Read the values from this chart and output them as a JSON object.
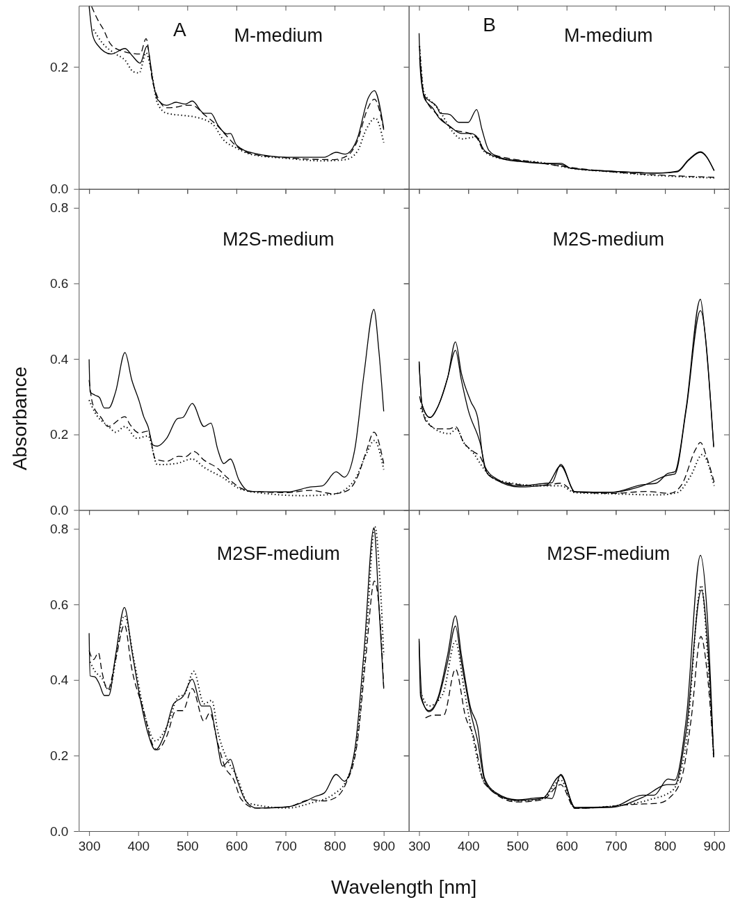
{
  "chart_data": [
    {
      "type": "line",
      "title": "M-medium",
      "annotations": [
        "A"
      ],
      "xlim": [
        279,
        951
      ],
      "ylim": [
        0,
        0.3
      ],
      "xticks": [
        300,
        400,
        500,
        600,
        700,
        800,
        900
      ],
      "yticks": [
        {
          "value": 0,
          "label": "0.0"
        },
        {
          "value": 0.2,
          "label": "0.2"
        }
      ],
      "tick_labels": "y",
      "series": [
        {
          "color": "#000000",
          "line_style": "solid",
          "x": [
            300,
            307,
            317,
            345,
            373,
            387,
            404,
            418,
            430,
            439,
            458,
            477,
            496,
            510,
            534,
            548,
            562,
            581,
            588,
            600,
            633,
            704,
            779,
            803,
            822,
            846,
            869,
            881,
            900
          ],
          "values": [
            0.299,
            0.253,
            0.236,
            0.221,
            0.23,
            0.219,
            0.206,
            0.234,
            0.177,
            0.147,
            0.137,
            0.142,
            0.139,
            0.144,
            0.124,
            0.124,
            0.105,
            0.09,
            0.091,
            0.072,
            0.059,
            0.052,
            0.052,
            0.06,
            0.057,
            0.082,
            0.15,
            0.161,
            0.099
          ]
        },
        {
          "color": "#000000",
          "line_style": "dashed",
          "x": [
            305,
            321,
            328,
            343,
            357,
            404,
            416,
            430,
            458,
            477,
            496,
            510,
            534,
            562,
            581,
            600,
            633,
            704,
            798,
            827,
            846,
            867,
            881,
            900
          ],
          "values": [
            0.299,
            0.272,
            0.263,
            0.238,
            0.229,
            0.221,
            0.246,
            0.173,
            0.133,
            0.134,
            0.137,
            0.137,
            0.122,
            0.103,
            0.086,
            0.07,
            0.057,
            0.051,
            0.048,
            0.055,
            0.078,
            0.131,
            0.147,
            0.097
          ]
        },
        {
          "color": "#000000",
          "line_style": "dotted",
          "x": [
            309,
            326,
            354,
            373,
            390,
            402,
            416,
            425,
            439,
            458,
            496,
            515,
            553,
            572,
            600,
            633,
            704,
            775,
            822,
            846,
            864,
            883,
            900
          ],
          "values": [
            0.261,
            0.24,
            0.221,
            0.211,
            0.192,
            0.19,
            0.223,
            0.2,
            0.141,
            0.124,
            0.12,
            0.118,
            0.105,
            0.082,
            0.067,
            0.056,
            0.05,
            0.046,
            0.048,
            0.061,
            0.097,
            0.116,
            0.076
          ]
        }
      ]
    },
    {
      "type": "line",
      "title": "M-medium",
      "annotations": [
        "B"
      ],
      "xlim": [
        279,
        930
      ],
      "ylim": [
        0,
        0.3
      ],
      "xticks": [
        300,
        400,
        500,
        600,
        700,
        800,
        900
      ],
      "yticks": [
        {
          "value": 0,
          "label": null
        },
        {
          "value": 0.2,
          "label": null
        }
      ],
      "tick_labels": false,
      "series": [
        {
          "color": "#000000",
          "line_style": "solid",
          "x": [
            300,
            303,
            310,
            320,
            336,
            343,
            362,
            381,
            400,
            417,
            428,
            442,
            466,
            504,
            551,
            589,
            608,
            692,
            787,
            825,
            848,
            872,
            900
          ],
          "values": [
            0.255,
            0.189,
            0.154,
            0.145,
            0.135,
            0.124,
            0.122,
            0.109,
            0.109,
            0.13,
            0.097,
            0.063,
            0.051,
            0.046,
            0.042,
            0.04,
            0.034,
            0.029,
            0.026,
            0.029,
            0.048,
            0.061,
            0.03
          ]
        },
        {
          "color": "#000000",
          "line_style": "solid",
          "x": [
            301,
            310,
            329,
            339,
            362,
            386,
            405,
            417,
            433,
            466,
            504,
            551,
            589,
            608,
            692,
            787,
            825,
            848,
            872,
            900
          ],
          "values": [
            0.215,
            0.15,
            0.131,
            0.118,
            0.103,
            0.091,
            0.091,
            0.086,
            0.063,
            0.05,
            0.045,
            0.042,
            0.042,
            0.034,
            0.029,
            0.026,
            0.028,
            0.047,
            0.06,
            0.03
          ]
        },
        {
          "color": "#000000",
          "line_style": "dashed",
          "x": [
            301,
            310,
            339,
            372,
            405,
            417,
            433,
            551,
            692,
            763,
            900
          ],
          "values": [
            0.234,
            0.154,
            0.12,
            0.097,
            0.09,
            0.084,
            0.061,
            0.042,
            0.028,
            0.024,
            0.019
          ]
        },
        {
          "color": "#000000",
          "line_style": "dotted",
          "x": [
            301,
            310,
            325,
            339,
            369,
            386,
            405,
            417,
            433,
            466,
            551,
            608,
            692,
            763,
            834,
            900
          ],
          "values": [
            0.234,
            0.158,
            0.143,
            0.131,
            0.093,
            0.082,
            0.084,
            0.086,
            0.061,
            0.05,
            0.043,
            0.034,
            0.028,
            0.023,
            0.02,
            0.018
          ]
        }
      ]
    },
    {
      "type": "line",
      "title": "M2S-medium",
      "ylabel": "Absorbance",
      "xlim": [
        279,
        951
      ],
      "ylim": [
        0,
        0.85
      ],
      "xticks": [
        300,
        400,
        500,
        600,
        700,
        800,
        900
      ],
      "yticks": [
        {
          "value": 0,
          "label": "0.0"
        },
        {
          "value": 0.2,
          "label": "0.2"
        },
        {
          "value": 0.4,
          "label": "0.4"
        },
        {
          "value": 0.6,
          "label": "0.6"
        },
        {
          "value": 0.8,
          "label": "0.8"
        }
      ],
      "tick_labels": "y",
      "series": [
        {
          "color": "#000000",
          "line_style": "solid",
          "x": [
            300,
            302,
            312,
            321,
            331,
            340,
            354,
            373,
            387,
            402,
            411,
            420,
            430,
            439,
            458,
            480,
            491,
            510,
            534,
            548,
            562,
            574,
            588,
            605,
            628,
            704,
            751,
            775,
            803,
            820,
            841,
            860,
            880,
            890,
            900
          ],
          "values": [
            0.399,
            0.313,
            0.304,
            0.298,
            0.27,
            0.27,
            0.313,
            0.417,
            0.344,
            0.288,
            0.248,
            0.221,
            0.172,
            0.169,
            0.19,
            0.242,
            0.245,
            0.282,
            0.221,
            0.23,
            0.16,
            0.123,
            0.135,
            0.08,
            0.049,
            0.048,
            0.061,
            0.064,
            0.101,
            0.087,
            0.16,
            0.362,
            0.531,
            0.423,
            0.261
          ]
        },
        {
          "color": "#000000",
          "line_style": "dashed",
          "x": [
            300,
            307,
            326,
            338,
            373,
            383,
            402,
            420,
            435,
            458,
            482,
            496,
            513,
            534,
            562,
            581,
            609,
            633,
            704,
            751,
            798,
            827,
            846,
            864,
            880,
            900
          ],
          "values": [
            0.344,
            0.282,
            0.242,
            0.221,
            0.247,
            0.227,
            0.204,
            0.209,
            0.135,
            0.129,
            0.142,
            0.141,
            0.155,
            0.132,
            0.11,
            0.086,
            0.058,
            0.049,
            0.046,
            0.052,
            0.043,
            0.052,
            0.086,
            0.153,
            0.206,
            0.123
          ]
        },
        {
          "color": "#000000",
          "line_style": "dotted",
          "x": [
            300,
            312,
            340,
            354,
            373,
            397,
            420,
            439,
            477,
            510,
            534,
            572,
            609,
            657,
            737,
            798,
            841,
            864,
            881,
            900
          ],
          "values": [
            0.291,
            0.258,
            0.221,
            0.206,
            0.221,
            0.19,
            0.196,
            0.12,
            0.123,
            0.135,
            0.113,
            0.086,
            0.055,
            0.044,
            0.038,
            0.042,
            0.08,
            0.147,
            0.184,
            0.107
          ]
        }
      ]
    },
    {
      "type": "line",
      "title": "M2S-medium",
      "xlim": [
        279,
        930
      ],
      "ylim": [
        0,
        0.85
      ],
      "xticks": [
        300,
        400,
        500,
        600,
        700,
        800,
        900
      ],
      "yticks": [
        {
          "value": 0,
          "label": null
        },
        {
          "value": 0.2,
          "label": null
        },
        {
          "value": 0.4,
          "label": null
        },
        {
          "value": 0.6,
          "label": null
        },
        {
          "value": 0.8,
          "label": null
        }
      ],
      "tick_labels": false,
      "series": [
        {
          "color": "#000000",
          "line_style": "solid",
          "x": [
            300,
            306,
            322,
            339,
            358,
            374,
            386,
            405,
            419,
            433,
            457,
            504,
            560,
            570,
            588,
            617,
            692,
            754,
            782,
            806,
            820,
            843,
            872,
            881,
            899
          ],
          "values": [
            0.393,
            0.279,
            0.245,
            0.276,
            0.35,
            0.445,
            0.362,
            0.288,
            0.245,
            0.117,
            0.083,
            0.064,
            0.071,
            0.072,
            0.121,
            0.048,
            0.047,
            0.067,
            0.071,
            0.097,
            0.101,
            0.27,
            0.558,
            0.472,
            0.169
          ]
        },
        {
          "color": "#000000",
          "line_style": "solid",
          "x": [
            300,
            306,
            322,
            339,
            358,
            374,
            386,
            400,
            424,
            438,
            457,
            504,
            560,
            588,
            617,
            692,
            754,
            806,
            820,
            843,
            872,
            899
          ],
          "values": [
            0.393,
            0.279,
            0.245,
            0.276,
            0.35,
            0.423,
            0.344,
            0.264,
            0.178,
            0.098,
            0.08,
            0.061,
            0.067,
            0.117,
            0.048,
            0.047,
            0.064,
            0.092,
            0.095,
            0.264,
            0.528,
            0.166
          ]
        },
        {
          "color": "#000000",
          "line_style": "dashed",
          "x": [
            301,
            315,
            339,
            362,
            374,
            391,
            409,
            424,
            442,
            480,
            551,
            588,
            617,
            692,
            763,
            810,
            834,
            862,
            872,
            886,
            900
          ],
          "values": [
            0.301,
            0.233,
            0.215,
            0.215,
            0.221,
            0.178,
            0.156,
            0.141,
            0.092,
            0.071,
            0.064,
            0.071,
            0.048,
            0.044,
            0.049,
            0.044,
            0.067,
            0.16,
            0.179,
            0.135,
            0.074
          ]
        },
        {
          "color": "#000000",
          "line_style": "dotted",
          "x": [
            303,
            325,
            362,
            376,
            391,
            409,
            433,
            457,
            551,
            588,
            617,
            692,
            787,
            825,
            853,
            876,
            900
          ],
          "values": [
            0.27,
            0.221,
            0.202,
            0.215,
            0.178,
            0.153,
            0.107,
            0.08,
            0.064,
            0.064,
            0.046,
            0.043,
            0.04,
            0.046,
            0.092,
            0.147,
            0.064
          ]
        }
      ]
    },
    {
      "type": "line",
      "title": "M2SF-medium",
      "xlabel": "Wavelength [nm]",
      "xlim": [
        279,
        951
      ],
      "ylim": [
        0,
        0.85
      ],
      "xticks": [
        300,
        400,
        500,
        600,
        700,
        800,
        900
      ],
      "yticks": [
        {
          "value": 0,
          "label": "0.0"
        },
        {
          "value": 0.2,
          "label": "0.2"
        },
        {
          "value": 0.4,
          "label": "0.4"
        },
        {
          "value": 0.6,
          "label": "0.6"
        },
        {
          "value": 0.8,
          "label": "0.8"
        }
      ],
      "series": [
        {
          "color": "#000000",
          "line_style": "solid",
          "x": [
            300,
            302,
            312,
            321,
            331,
            340,
            354,
            372,
            387,
            406,
            420,
            435,
            454,
            472,
            491,
            510,
            529,
            546,
            557,
            572,
            588,
            600,
            619,
            642,
            704,
            742,
            761,
            779,
            803,
            820,
            841,
            860,
            880,
            890,
            900
          ],
          "values": [
            0.524,
            0.411,
            0.408,
            0.389,
            0.359,
            0.359,
            0.466,
            0.592,
            0.478,
            0.337,
            0.258,
            0.215,
            0.258,
            0.337,
            0.356,
            0.402,
            0.331,
            0.331,
            0.264,
            0.172,
            0.19,
            0.141,
            0.08,
            0.061,
            0.064,
            0.08,
            0.092,
            0.101,
            0.15,
            0.132,
            0.215,
            0.478,
            0.803,
            0.601,
            0.377
          ]
        },
        {
          "color": "#000000",
          "line_style": "dashed",
          "x": [
            300,
            309,
            319,
            326,
            338,
            354,
            372,
            387,
            411,
            430,
            439,
            458,
            477,
            491,
            510,
            534,
            546,
            562,
            576,
            595,
            609,
            638,
            704,
            751,
            779,
            798,
            822,
            846,
            864,
            881,
            893,
            900
          ],
          "values": [
            0.478,
            0.454,
            0.472,
            0.423,
            0.374,
            0.454,
            0.546,
            0.429,
            0.319,
            0.227,
            0.215,
            0.251,
            0.319,
            0.319,
            0.377,
            0.291,
            0.313,
            0.233,
            0.172,
            0.135,
            0.086,
            0.061,
            0.064,
            0.083,
            0.08,
            0.086,
            0.123,
            0.233,
            0.466,
            0.662,
            0.552,
            0.38
          ]
        },
        {
          "color": "#000000",
          "line_style": "dotted",
          "x": [
            302,
            312,
            326,
            340,
            372,
            392,
            416,
            435,
            458,
            482,
            494,
            513,
            534,
            550,
            562,
            581,
            600,
            624,
            704,
            751,
            798,
            822,
            846,
            864,
            882,
            893,
            900
          ],
          "values": [
            0.448,
            0.423,
            0.405,
            0.374,
            0.57,
            0.448,
            0.294,
            0.239,
            0.276,
            0.356,
            0.362,
            0.423,
            0.337,
            0.346,
            0.264,
            0.19,
            0.147,
            0.074,
            0.061,
            0.074,
            0.098,
            0.129,
            0.245,
            0.503,
            0.806,
            0.65,
            0.466
          ]
        }
      ]
    },
    {
      "type": "line",
      "title": "M2SF-medium",
      "xlim": [
        279,
        930
      ],
      "ylim": [
        0,
        0.85
      ],
      "xticks": [
        300,
        400,
        500,
        600,
        700,
        800,
        900
      ],
      "yticks": [
        {
          "value": 0,
          "label": null
        },
        {
          "value": 0.2,
          "label": null
        },
        {
          "value": 0.4,
          "label": null
        },
        {
          "value": 0.6,
          "label": null
        },
        {
          "value": 0.8,
          "label": null
        }
      ],
      "tick_labels": "x",
      "series": [
        {
          "color": "#000000",
          "line_style": "solid",
          "x": [
            300,
            303,
            320,
            339,
            358,
            374,
            386,
            405,
            419,
            433,
            457,
            499,
            551,
            570,
            588,
            617,
            692,
            754,
            778,
            806,
            820,
            843,
            872,
            886,
            899
          ],
          "values": [
            0.509,
            0.356,
            0.319,
            0.356,
            0.466,
            0.57,
            0.466,
            0.325,
            0.276,
            0.141,
            0.101,
            0.083,
            0.089,
            0.086,
            0.15,
            0.063,
            0.064,
            0.095,
            0.095,
            0.138,
            0.135,
            0.294,
            0.73,
            0.57,
            0.196
          ]
        },
        {
          "color": "#000000",
          "line_style": "solid",
          "x": [
            300,
            306,
            320,
            339,
            358,
            374,
            386,
            405,
            419,
            433,
            457,
            499,
            551,
            588,
            617,
            692,
            754,
            806,
            820,
            843,
            874,
            886,
            899
          ],
          "values": [
            0.503,
            0.35,
            0.316,
            0.35,
            0.448,
            0.543,
            0.448,
            0.313,
            0.239,
            0.135,
            0.098,
            0.081,
            0.087,
            0.147,
            0.061,
            0.063,
            0.089,
            0.123,
            0.123,
            0.264,
            0.638,
            0.509,
            0.196
          ]
        },
        {
          "color": "#000000",
          "line_style": "dashed",
          "x": [
            313,
            329,
            350,
            374,
            395,
            409,
            433,
            499,
            551,
            588,
            617,
            740,
            787,
            810,
            834,
            853,
            873,
            886,
            899
          ],
          "values": [
            0.3,
            0.307,
            0.307,
            0.429,
            0.3,
            0.258,
            0.126,
            0.077,
            0.083,
            0.123,
            0.06,
            0.071,
            0.074,
            0.089,
            0.141,
            0.294,
            0.515,
            0.417,
            0.202
          ]
        },
        {
          "color": "#000000",
          "line_style": "dotted",
          "x": [
            303,
            320,
            348,
            374,
            391,
            409,
            433,
            499,
            551,
            588,
            617,
            740,
            768,
            815,
            843,
            874,
            886,
            899
          ],
          "values": [
            0.368,
            0.331,
            0.362,
            0.503,
            0.38,
            0.251,
            0.129,
            0.08,
            0.086,
            0.135,
            0.061,
            0.074,
            0.083,
            0.107,
            0.233,
            0.65,
            0.478,
            0.196
          ]
        }
      ]
    }
  ]
}
